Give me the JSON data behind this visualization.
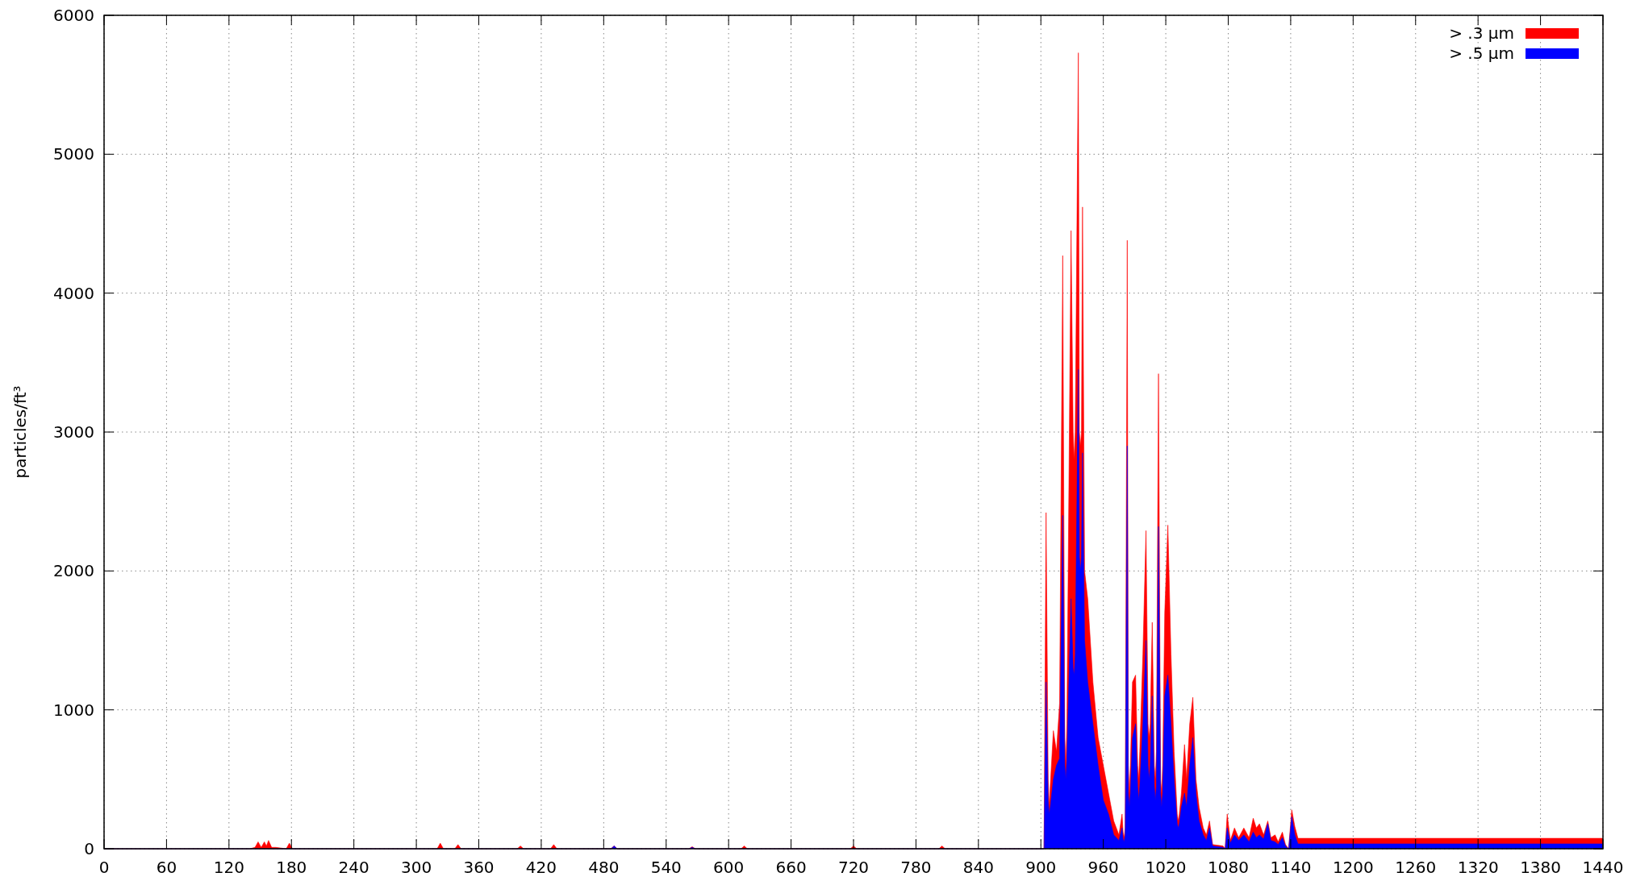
{
  "chart_data": {
    "type": "area",
    "ylabel": "particles/ft³",
    "xlim": [
      0,
      1440
    ],
    "ylim": [
      0,
      6000
    ],
    "xticks": [
      0,
      60,
      120,
      180,
      240,
      300,
      360,
      420,
      480,
      540,
      600,
      660,
      720,
      780,
      840,
      900,
      960,
      1020,
      1080,
      1140,
      1200,
      1260,
      1320,
      1380,
      1440
    ],
    "yticks": [
      0,
      1000,
      2000,
      3000,
      4000,
      5000,
      6000
    ],
    "grid": true,
    "legend": "top right",
    "x": [
      0,
      140,
      145,
      148,
      151,
      154,
      156,
      158,
      161,
      165,
      175,
      178,
      181,
      320,
      323,
      326,
      337,
      340,
      343,
      397,
      400,
      403,
      429,
      432,
      435,
      487,
      490,
      493,
      562,
      565,
      568,
      612,
      615,
      618,
      717,
      720,
      723,
      802,
      805,
      808,
      903,
      905,
      907,
      908,
      909,
      912,
      915,
      918,
      921,
      923,
      924,
      925,
      929,
      931,
      932,
      933,
      936,
      937,
      938,
      939,
      940,
      942,
      945,
      950,
      955,
      960,
      965,
      970,
      975,
      978,
      979,
      980,
      981,
      983,
      984,
      985,
      986,
      988,
      991,
      993,
      994,
      995,
      998,
      1001,
      1003,
      1004,
      1005,
      1007,
      1009,
      1010,
      1011,
      1013,
      1015,
      1016,
      1017,
      1019,
      1022,
      1025,
      1028,
      1031,
      1032,
      1033,
      1035,
      1038,
      1040,
      1043,
      1046,
      1049,
      1052,
      1056,
      1059,
      1062,
      1065,
      1075,
      1077,
      1079,
      1082,
      1086,
      1090,
      1095,
      1100,
      1104,
      1107,
      1110,
      1114,
      1118,
      1121,
      1125,
      1128,
      1132,
      1135,
      1138,
      1141,
      1144,
      1147,
      1440
    ],
    "series": [
      {
        "name": "> .3 µm",
        "color": "#ff0000",
        "values": [
          0,
          0,
          10,
          50,
          10,
          50,
          20,
          60,
          10,
          10,
          0,
          40,
          0,
          0,
          40,
          0,
          0,
          30,
          0,
          0,
          20,
          0,
          0,
          30,
          0,
          0,
          20,
          0,
          0,
          15,
          0,
          0,
          20,
          0,
          0,
          20,
          0,
          0,
          20,
          0,
          0,
          2420,
          500,
          300,
          450,
          850,
          700,
          1050,
          4270,
          800,
          600,
          900,
          4450,
          3000,
          2800,
          3000,
          5730,
          3000,
          2900,
          3000,
          4620,
          2000,
          1800,
          1200,
          800,
          600,
          400,
          200,
          100,
          250,
          120,
          80,
          150,
          4380,
          600,
          400,
          600,
          1200,
          1250,
          600,
          500,
          700,
          1400,
          2290,
          900,
          800,
          900,
          1630,
          600,
          500,
          700,
          3420,
          500,
          400,
          600,
          1700,
          2330,
          1400,
          700,
          250,
          200,
          250,
          400,
          750,
          500,
          900,
          1090,
          500,
          300,
          150,
          100,
          200,
          30,
          20,
          0,
          250,
          60,
          150,
          80,
          150,
          80,
          220,
          150,
          180,
          100,
          200,
          80,
          100,
          50,
          120,
          30,
          0,
          280,
          160,
          75,
          75
        ]
      },
      {
        "name": "> .5 µm",
        "color": "#0000ff",
        "values": [
          0,
          0,
          0,
          0,
          0,
          0,
          0,
          0,
          0,
          0,
          0,
          0,
          0,
          0,
          0,
          0,
          0,
          0,
          0,
          0,
          0,
          0,
          0,
          0,
          0,
          0,
          20,
          0,
          0,
          10,
          0,
          0,
          0,
          0,
          0,
          0,
          0,
          0,
          0,
          0,
          0,
          1200,
          350,
          250,
          300,
          500,
          600,
          650,
          2400,
          600,
          500,
          650,
          1800,
          1300,
          1250,
          1400,
          3450,
          2100,
          2000,
          2100,
          2850,
          1500,
          1200,
          900,
          600,
          350,
          250,
          100,
          60,
          150,
          70,
          50,
          100,
          2900,
          400,
          300,
          400,
          800,
          900,
          450,
          350,
          450,
          900,
          1500,
          600,
          500,
          600,
          1100,
          450,
          350,
          450,
          2320,
          400,
          300,
          400,
          1100,
          1250,
          900,
          500,
          180,
          150,
          180,
          300,
          400,
          300,
          600,
          800,
          400,
          200,
          100,
          60,
          150,
          20,
          10,
          0,
          150,
          40,
          100,
          60,
          100,
          50,
          120,
          80,
          100,
          70,
          180,
          60,
          50,
          30,
          80,
          20,
          0,
          230,
          100,
          35,
          35
        ]
      }
    ]
  }
}
